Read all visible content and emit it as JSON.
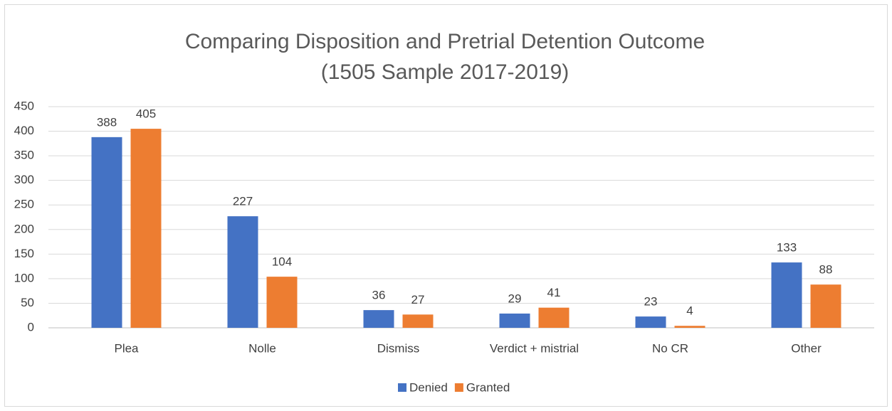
{
  "chart_data": {
    "type": "bar",
    "title": [
      "Comparing Disposition and Pretrial Detention Outcome",
      "(1505 Sample 2017-2019)"
    ],
    "categories": [
      "Plea",
      "Nolle",
      "Dismiss",
      "Verdict + mistrial",
      "No CR",
      "Other"
    ],
    "series": [
      {
        "name": "Denied",
        "color": "#4472c4",
        "values": [
          388,
          227,
          36,
          29,
          23,
          133
        ]
      },
      {
        "name": "Granted",
        "color": "#ed7d31",
        "values": [
          405,
          104,
          27,
          41,
          4,
          88
        ]
      }
    ],
    "ylim": [
      0,
      450
    ],
    "yticks": [
      0,
      50,
      100,
      150,
      200,
      250,
      300,
      350,
      400,
      450
    ],
    "grid": true,
    "legend": "bottom"
  }
}
